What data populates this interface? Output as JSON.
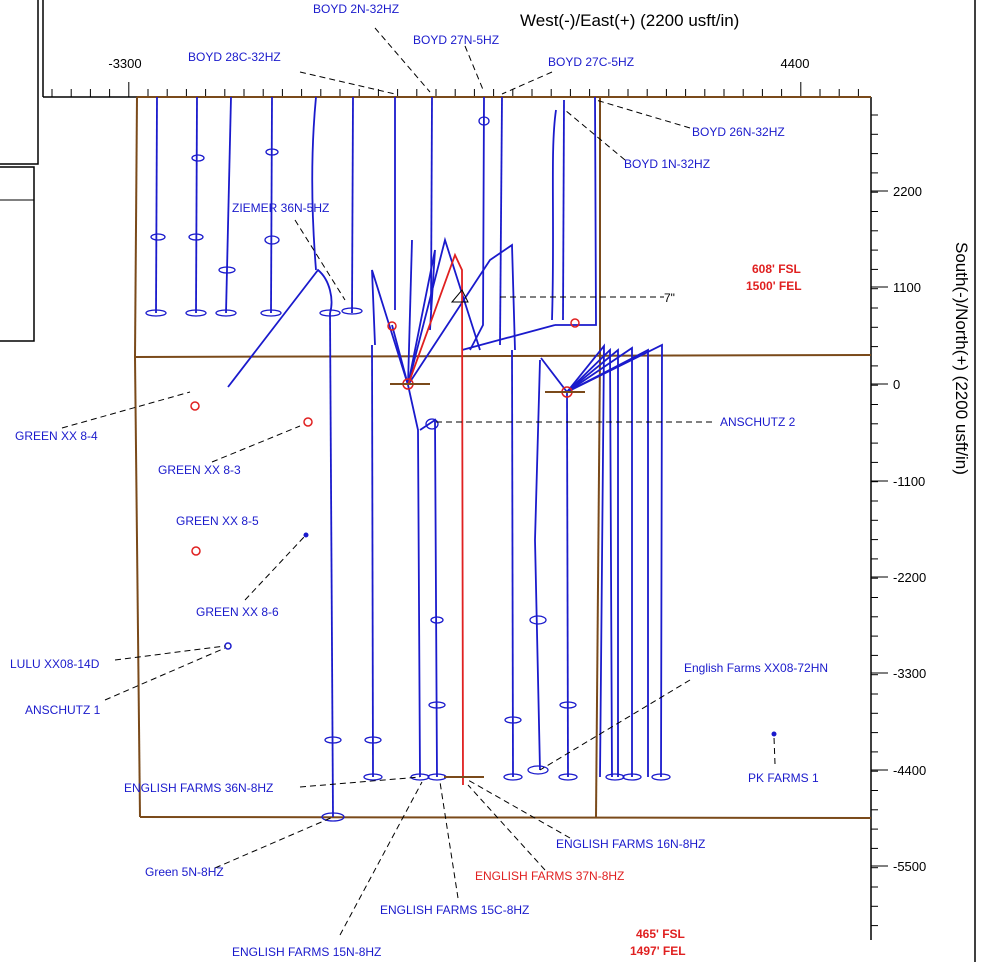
{
  "axes": {
    "x_title": "West(-)/East(+) (2200 usft/in)",
    "y_title": "South(-)/North(+) (2200 usft/in)",
    "x_ticks": [
      "-3300",
      "4400"
    ],
    "y_ticks": [
      "2200",
      "1100",
      "0",
      "-1100",
      "-2200",
      "-3300",
      "-4400",
      "-5500"
    ]
  },
  "annotations": {
    "top_fsl": "608' FSL",
    "top_fel": "1500' FEL",
    "bottom_fsl": "465' FSL",
    "bottom_fel": "1497' FEL",
    "angle": "7\""
  },
  "colors": {
    "well": "#1a1acc",
    "highlight": "#e02020",
    "lease": "#7a4a1a"
  },
  "wells": {
    "boyd_2n": "BOYD 2N-32HZ",
    "boyd_27n": "BOYD 27N-5HZ",
    "boyd_28c": "BOYD 28C-32HZ",
    "boyd_27c": "BOYD 27C-5HZ",
    "boyd_26n": "BOYD 26N-32HZ",
    "boyd_1n": "BOYD 1N-32HZ",
    "ziemer": "ZIEMER 36N-5HZ",
    "green_84": "GREEN XX 8-4",
    "green_83": "GREEN XX 8-3",
    "green_85": "GREEN XX 8-5",
    "green_86": "GREEN XX 8-6",
    "anschutz_2": "ANSCHUTZ 2",
    "lulu": "LULU XX08-14D",
    "anschutz_1": "ANSCHUTZ 1",
    "english_72hn": "English Farms XX08-72HN",
    "pk_farms": "PK FARMS 1",
    "english_36n": "ENGLISH FARMS 36N-8HZ",
    "english_16n": "ENGLISH FARMS 16N-8HZ",
    "green_5n": "Green 5N-8HZ",
    "english_37n": "ENGLISH FARMS 37N-8HZ",
    "english_15c": "ENGLISH FARMS 15C-8HZ",
    "english_15n": "ENGLISH FARMS 15N-8HZ"
  }
}
